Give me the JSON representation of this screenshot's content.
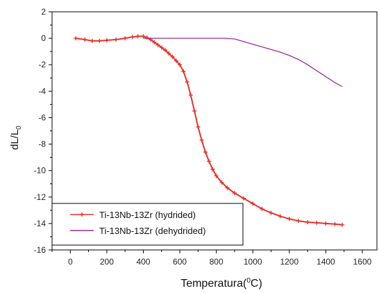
{
  "chart_data": {
    "type": "line",
    "title": "",
    "xlabel": "Temperatura(",
    "xlabel_sup": "0",
    "xlabel_tail": "C)",
    "ylabel": "dL/L",
    "ylabel_sub": "0",
    "xlim": [
      -100,
      1680
    ],
    "ylim": [
      -16,
      2
    ],
    "xticks": [
      0,
      200,
      400,
      600,
      800,
      1000,
      1200,
      1400,
      1600
    ],
    "xtick_labels": [
      "0",
      "200",
      "400",
      "600",
      "800",
      "1000",
      "1200",
      "1400",
      "1600"
    ],
    "yticks": [
      2,
      0,
      -2,
      -4,
      -6,
      -8,
      -10,
      -12,
      -14,
      -16
    ],
    "ytick_labels": [
      "2",
      "0",
      "-2",
      "-4",
      "-6",
      "-8",
      "-10",
      "-12",
      "-14",
      "-16"
    ],
    "grid": false,
    "legend_position": "bottom-left",
    "series": [
      {
        "name": "Ti-13Nb-13Zr (hydrided)",
        "color": "#e8312a",
        "marker": "plus",
        "x": [
          30,
          80,
          120,
          160,
          200,
          250,
          300,
          340,
          370,
          400,
          420,
          440,
          460,
          480,
          500,
          520,
          540,
          560,
          580,
          600,
          620,
          640,
          660,
          680,
          700,
          720,
          740,
          760,
          780,
          800,
          830,
          860,
          900,
          950,
          1000,
          1050,
          1100,
          1150,
          1200,
          1250,
          1300,
          1350,
          1400,
          1450,
          1490
        ],
        "y": [
          0.0,
          -0.1,
          -0.2,
          -0.2,
          -0.15,
          -0.1,
          0.0,
          0.1,
          0.15,
          0.15,
          0.05,
          -0.1,
          -0.3,
          -0.5,
          -0.7,
          -0.9,
          -1.15,
          -1.4,
          -1.7,
          -2.0,
          -2.5,
          -3.3,
          -4.3,
          -5.5,
          -6.7,
          -7.7,
          -8.6,
          -9.3,
          -9.9,
          -10.4,
          -10.9,
          -11.3,
          -11.7,
          -12.1,
          -12.5,
          -12.9,
          -13.2,
          -13.45,
          -13.65,
          -13.8,
          -13.9,
          -13.95,
          -14.0,
          -14.05,
          -14.1
        ]
      },
      {
        "name": "Ti-13Nb-13Zr (dehydrided)",
        "color": "#9b2d9b",
        "marker": "none",
        "x": [
          400,
          450,
          500,
          600,
          700,
          800,
          850,
          900,
          950,
          1000,
          1050,
          1100,
          1150,
          1200,
          1250,
          1300,
          1350,
          1400,
          1450,
          1490
        ],
        "y": [
          0.0,
          0.0,
          0.0,
          0.0,
          0.0,
          0.0,
          0.0,
          -0.05,
          -0.25,
          -0.45,
          -0.65,
          -0.85,
          -1.05,
          -1.3,
          -1.6,
          -2.0,
          -2.45,
          -2.9,
          -3.35,
          -3.65
        ]
      }
    ]
  }
}
